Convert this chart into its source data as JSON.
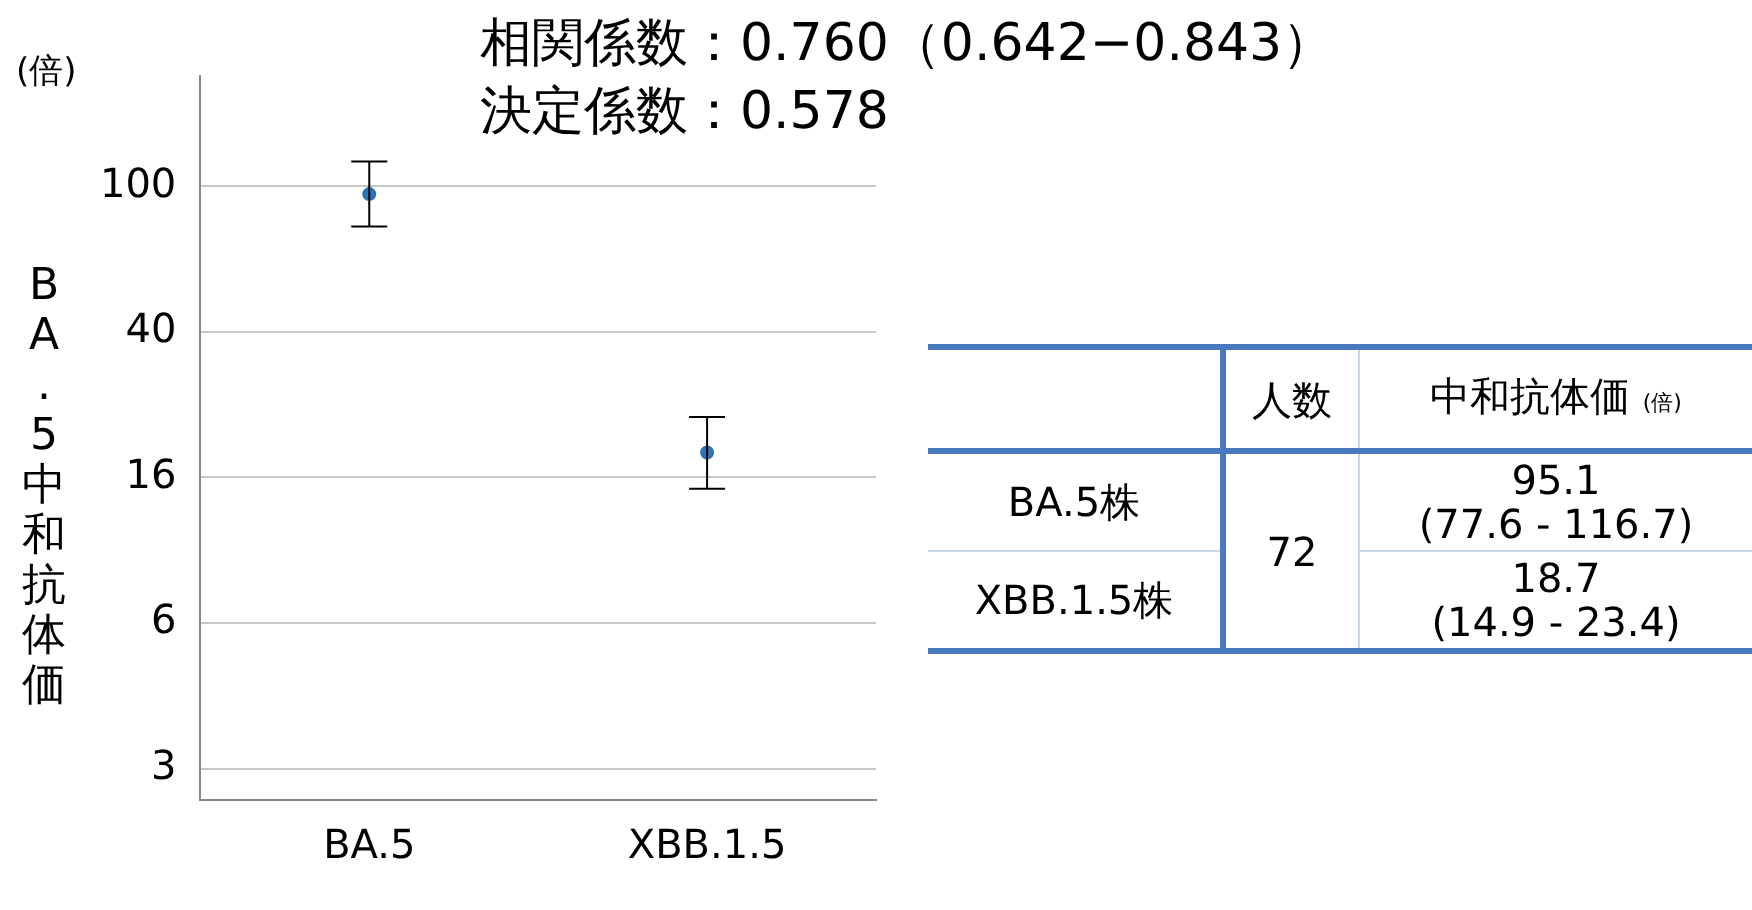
{
  "chart_data": {
    "type": "scatter",
    "title": "相関係数：0.760（0.642−0.843）",
    "subtitle": "決定係数：0.578",
    "ylabel": "BA.5中和抗体価",
    "categories": [
      "BA.5",
      "XBB.1.5"
    ],
    "series": [
      {
        "color": "#2e75b6",
        "values": [
          95.1,
          18.7
        ],
        "errors": [
          [
            77.6,
            116.7
          ],
          [
            14.9,
            23.4
          ]
        ]
      }
    ],
    "log": "y",
    "ylim": [
      2.1,
      200
    ],
    "yticks": [
      {
        "value": 2.56,
        "label": "3"
      },
      {
        "value": 6.4,
        "label": "6"
      },
      16,
      40,
      100
    ],
    "grid": "y",
    "marker": "circle",
    "legend": false,
    "annotations": [
      "(倍)",
      "人数",
      "中和抗体価",
      "(倍)",
      "BA.5株",
      "XBB.1.5株",
      "72",
      "95.1",
      "(77.6 - 116.7)",
      "18.7",
      "(14.9 - 23.4)"
    ]
  }
}
